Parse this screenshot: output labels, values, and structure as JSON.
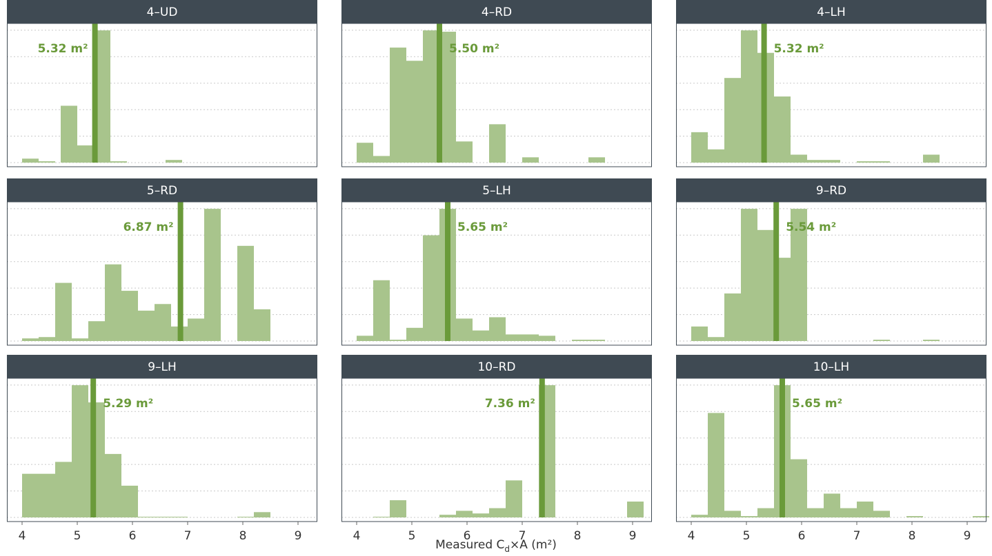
{
  "chart_data": {
    "type": "bar",
    "xlabel": "Measured C",
    "xlabel_sub": "d",
    "xlabel_tail": "×A (m²)",
    "xlim": [
      4,
      9.5
    ],
    "x_ticks": [
      "4",
      "5",
      "6",
      "7",
      "8",
      "9"
    ],
    "x_tick_values": [
      4,
      5,
      6,
      7,
      8,
      9
    ],
    "bin_width": 0.3,
    "grid": true,
    "colors": {
      "bar": "#a8c48c",
      "mean_line": "#6a9a3a",
      "mean_text": "#6a9a3a",
      "strip": "#3f4a53",
      "strip_text": "#ffffff",
      "grid": "#c8c8c8",
      "frame": "#3f4a53"
    },
    "panels": [
      {
        "title": "4–UD",
        "mean": 5.32,
        "mean_label": "5.32 m²",
        "label_side": "left",
        "bins": [
          {
            "x": 4.15,
            "value": 0.03
          },
          {
            "x": 4.45,
            "value": 0.01
          },
          {
            "x": 4.85,
            "value": 0.43
          },
          {
            "x": 5.15,
            "value": 0.13
          },
          {
            "x": 5.45,
            "value": 1.0
          },
          {
            "x": 5.75,
            "value": 0.01
          },
          {
            "x": 6.75,
            "value": 0.02
          }
        ]
      },
      {
        "title": "4–RD",
        "mean": 5.5,
        "mean_label": "5.50 m²",
        "label_side": "right",
        "bins": [
          {
            "x": 4.15,
            "value": 0.15
          },
          {
            "x": 4.45,
            "value": 0.05
          },
          {
            "x": 4.75,
            "value": 0.87
          },
          {
            "x": 5.05,
            "value": 0.77
          },
          {
            "x": 5.35,
            "value": 1.0
          },
          {
            "x": 5.65,
            "value": 0.99
          },
          {
            "x": 5.95,
            "value": 0.16
          },
          {
            "x": 6.55,
            "value": 0.29
          },
          {
            "x": 7.15,
            "value": 0.04
          },
          {
            "x": 8.35,
            "value": 0.04
          }
        ]
      },
      {
        "title": "4–LH",
        "mean": 5.32,
        "mean_label": "5.32 m²",
        "label_side": "right",
        "bins": [
          {
            "x": 4.15,
            "value": 0.23
          },
          {
            "x": 4.45,
            "value": 0.1
          },
          {
            "x": 4.75,
            "value": 0.64
          },
          {
            "x": 5.05,
            "value": 1.0
          },
          {
            "x": 5.35,
            "value": 0.83
          },
          {
            "x": 5.65,
            "value": 0.5
          },
          {
            "x": 5.95,
            "value": 0.06
          },
          {
            "x": 6.25,
            "value": 0.02
          },
          {
            "x": 6.55,
            "value": 0.02
          },
          {
            "x": 7.15,
            "value": 0.01
          },
          {
            "x": 7.45,
            "value": 0.01
          },
          {
            "x": 8.35,
            "value": 0.06
          }
        ]
      },
      {
        "title": "5–RD",
        "mean": 6.87,
        "mean_label": "6.87 m²",
        "label_side": "left",
        "bins": [
          {
            "x": 4.15,
            "value": 0.02
          },
          {
            "x": 4.45,
            "value": 0.03
          },
          {
            "x": 4.75,
            "value": 0.44
          },
          {
            "x": 5.05,
            "value": 0.02
          },
          {
            "x": 5.35,
            "value": 0.15
          },
          {
            "x": 5.65,
            "value": 0.58
          },
          {
            "x": 5.95,
            "value": 0.38
          },
          {
            "x": 6.25,
            "value": 0.23
          },
          {
            "x": 6.55,
            "value": 0.28
          },
          {
            "x": 6.85,
            "value": 0.11
          },
          {
            "x": 7.15,
            "value": 0.17
          },
          {
            "x": 7.45,
            "value": 1.0
          },
          {
            "x": 8.05,
            "value": 0.72
          },
          {
            "x": 8.35,
            "value": 0.24
          }
        ]
      },
      {
        "title": "5–LH",
        "mean": 5.65,
        "mean_label": "5.65 m²",
        "label_side": "right",
        "bins": [
          {
            "x": 4.15,
            "value": 0.04
          },
          {
            "x": 4.45,
            "value": 0.46
          },
          {
            "x": 4.75,
            "value": 0.01
          },
          {
            "x": 5.05,
            "value": 0.1
          },
          {
            "x": 5.35,
            "value": 0.8
          },
          {
            "x": 5.65,
            "value": 1.0
          },
          {
            "x": 5.95,
            "value": 0.17
          },
          {
            "x": 6.25,
            "value": 0.08
          },
          {
            "x": 6.55,
            "value": 0.18
          },
          {
            "x": 6.85,
            "value": 0.05
          },
          {
            "x": 7.15,
            "value": 0.05
          },
          {
            "x": 7.45,
            "value": 0.04
          },
          {
            "x": 8.05,
            "value": 0.01
          },
          {
            "x": 8.35,
            "value": 0.01
          }
        ]
      },
      {
        "title": "9–RD",
        "mean": 5.54,
        "mean_label": "5.54 m²",
        "label_side": "right",
        "bins": [
          {
            "x": 4.15,
            "value": 0.11
          },
          {
            "x": 4.45,
            "value": 0.03
          },
          {
            "x": 4.75,
            "value": 0.36
          },
          {
            "x": 5.05,
            "value": 1.0
          },
          {
            "x": 5.35,
            "value": 0.84
          },
          {
            "x": 5.65,
            "value": 0.63
          },
          {
            "x": 5.95,
            "value": 1.0
          },
          {
            "x": 7.45,
            "value": 0.01
          },
          {
            "x": 8.35,
            "value": 0.01
          }
        ]
      },
      {
        "title": "9–LH",
        "mean": 5.29,
        "mean_label": "5.29 m²",
        "label_side": "right",
        "bins": [
          {
            "x": 4.15,
            "value": 0.33
          },
          {
            "x": 4.45,
            "value": 0.33
          },
          {
            "x": 4.75,
            "value": 0.42
          },
          {
            "x": 5.05,
            "value": 1.0
          },
          {
            "x": 5.35,
            "value": 0.87
          },
          {
            "x": 5.65,
            "value": 0.48
          },
          {
            "x": 5.95,
            "value": 0.24
          },
          {
            "x": 6.25,
            "value": 0.005
          },
          {
            "x": 6.55,
            "value": 0.005
          },
          {
            "x": 6.85,
            "value": 0.005
          },
          {
            "x": 8.05,
            "value": 0.005
          },
          {
            "x": 8.35,
            "value": 0.04
          }
        ]
      },
      {
        "title": "10–RD",
        "mean": 7.36,
        "mean_label": "7.36 m²",
        "label_side": "left",
        "bins": [
          {
            "x": 4.45,
            "value": 0.005
          },
          {
            "x": 4.75,
            "value": 0.13
          },
          {
            "x": 5.65,
            "value": 0.02
          },
          {
            "x": 5.95,
            "value": 0.05
          },
          {
            "x": 6.25,
            "value": 0.03
          },
          {
            "x": 6.55,
            "value": 0.07
          },
          {
            "x": 6.85,
            "value": 0.28
          },
          {
            "x": 7.45,
            "value": 1.0
          },
          {
            "x": 9.05,
            "value": 0.12
          }
        ]
      },
      {
        "title": "10–LH",
        "mean": 5.65,
        "mean_label": "5.65 m²",
        "label_side": "right",
        "bins": [
          {
            "x": 4.15,
            "value": 0.02
          },
          {
            "x": 4.45,
            "value": 0.79
          },
          {
            "x": 4.75,
            "value": 0.05
          },
          {
            "x": 5.05,
            "value": 0.01
          },
          {
            "x": 5.35,
            "value": 0.07
          },
          {
            "x": 5.65,
            "value": 1.0
          },
          {
            "x": 5.95,
            "value": 0.44
          },
          {
            "x": 6.25,
            "value": 0.07
          },
          {
            "x": 6.55,
            "value": 0.18
          },
          {
            "x": 6.85,
            "value": 0.07
          },
          {
            "x": 7.15,
            "value": 0.12
          },
          {
            "x": 7.45,
            "value": 0.05
          },
          {
            "x": 8.05,
            "value": 0.01
          },
          {
            "x": 9.25,
            "value": 0.01
          }
        ]
      }
    ]
  }
}
